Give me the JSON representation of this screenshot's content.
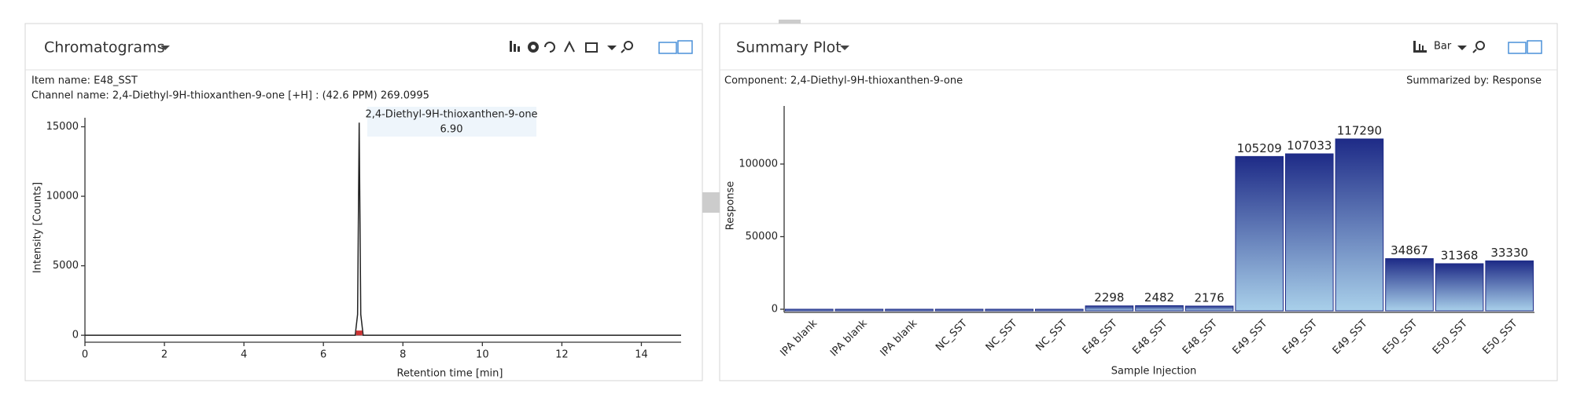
{
  "chart_data": [
    {
      "type": "line",
      "panel_title": "Chromatograms",
      "info": [
        "Item name: E48_SST",
        "Channel name: 2,4-Diethyl-9H-thioxanthen-9-one [+H] : (42.6 PPM) 269.0995"
      ],
      "annotation": [
        "2,4-Diethyl-9H-thioxanthen-9-one",
        "6.90"
      ],
      "x_label": "Retention time [min]",
      "y_label": "Intensity [Counts]",
      "x": [
        0,
        6.8,
        6.86,
        6.9,
        6.94,
        7.0,
        15
      ],
      "values": [
        0,
        0,
        1500,
        15300,
        1500,
        0,
        0
      ],
      "color": "#222222",
      "xlim": [
        0,
        15
      ],
      "xticks": [
        0,
        2,
        4,
        6,
        8,
        10,
        12,
        14
      ],
      "ylim": [
        -500,
        15650
      ],
      "yticks": [
        0,
        5000,
        10000,
        15000
      ]
    },
    {
      "type": "bar",
      "panel_title": "Summary Plot",
      "button": "Bar",
      "info": [
        "Component: 2,4-Diethyl-9H-thioxanthen-9-one",
        "Summarized by: Response"
      ],
      "x_label": "Sample Injection",
      "y_label": "Response",
      "categories": [
        "IPA blank",
        "IPA blank",
        "IPA blank",
        "NC_SST",
        "NC_SST",
        "NC_SST",
        "E48_SST",
        "E48_SST",
        "E48_SST",
        "E49_SST",
        "E49_SST",
        "E49_SST",
        "E50_SST",
        "E50_SST",
        "E50_SST"
      ],
      "values": [
        0,
        0,
        0,
        0,
        0,
        0,
        2298,
        2482,
        2176,
        105209,
        107033,
        117290,
        34867,
        31368,
        33330
      ],
      "color": [
        "#1e2b87",
        "#a9d0ea"
      ],
      "ylim": [
        0,
        140000
      ],
      "yticks": [
        0,
        50000,
        100000
      ]
    }
  ]
}
